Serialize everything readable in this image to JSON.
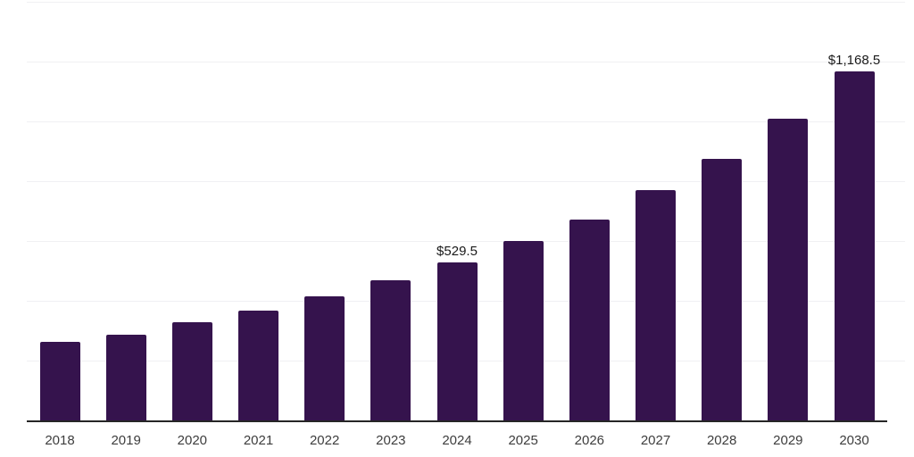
{
  "chart_data": {
    "type": "bar",
    "title": "",
    "xlabel": "",
    "ylabel": "",
    "categories": [
      "2018",
      "2019",
      "2020",
      "2021",
      "2022",
      "2023",
      "2024",
      "2025",
      "2026",
      "2027",
      "2028",
      "2029",
      "2030"
    ],
    "values": [
      262,
      288,
      327,
      366,
      416,
      470,
      529.5,
      599,
      673,
      769,
      876,
      1008,
      1168.5
    ],
    "bar_labels": [
      "",
      "",
      "",
      "",
      "",
      "",
      "$529.5",
      "",
      "",
      "",
      "",
      "",
      "$1,168.5"
    ],
    "ylim": [
      0,
      1400
    ],
    "gridline_interval": 200,
    "grid": true,
    "legend": false,
    "y_axis_labels_visible": false,
    "colors": {
      "bar": "#35134D",
      "axis_line": "#262626",
      "gridline": "#F0F0F3",
      "value_label_text": "#1A1A1A",
      "tick_label_text": "#3D3D3D",
      "background": "#FFFFFF"
    }
  }
}
